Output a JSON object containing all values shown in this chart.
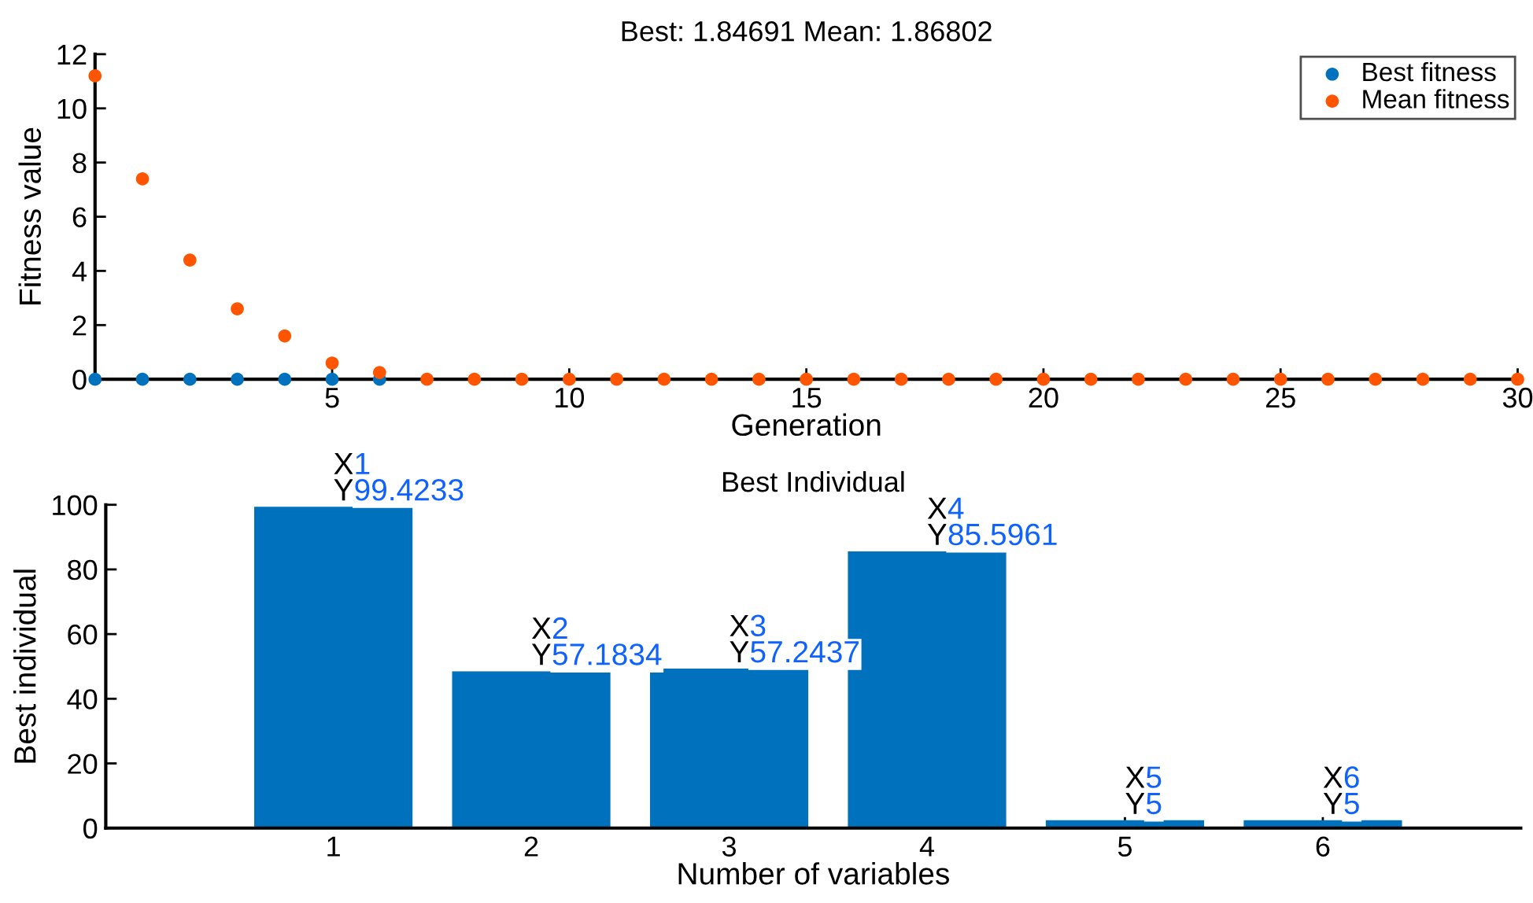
{
  "chart_data": [
    {
      "type": "scatter",
      "title": "Best: 1.84691 Mean: 1.86802",
      "xlabel": "Generation",
      "ylabel": "Fitness value",
      "x": [
        0,
        1,
        2,
        3,
        4,
        5,
        6,
        7,
        8,
        9,
        10,
        11,
        12,
        13,
        14,
        15,
        16,
        17,
        18,
        19,
        20,
        21,
        22,
        23,
        24,
        25,
        26,
        27,
        28,
        29,
        30
      ],
      "series": [
        {
          "name": "Best fitness",
          "color": "#0072bd",
          "values": [
            0,
            0,
            0,
            0,
            0,
            0,
            0,
            null,
            null,
            null,
            null,
            null,
            null,
            null,
            null,
            null,
            null,
            null,
            null,
            null,
            null,
            null,
            null,
            null,
            null,
            null,
            null,
            null,
            null,
            null,
            null
          ]
        },
        {
          "name": "Mean fitness",
          "color": "#ff5500",
          "values": [
            11.2,
            7.4,
            4.4,
            2.6,
            1.6,
            0.6,
            0.25,
            0,
            0,
            0,
            0,
            0,
            0,
            0,
            0,
            0,
            0,
            0,
            0,
            0,
            0,
            0,
            0,
            0,
            0,
            0,
            0,
            0,
            0,
            0,
            0
          ]
        }
      ],
      "xlim": [
        0,
        30
      ],
      "xticks": [
        5,
        10,
        15,
        20,
        25,
        30
      ],
      "ylim": [
        0,
        12
      ],
      "yticks": [
        0,
        2,
        4,
        6,
        8,
        10,
        12
      ],
      "marker": "circle",
      "legend": "top right",
      "grid": false
    },
    {
      "type": "bar",
      "title": "Best Individual",
      "xlabel": "Number of variables",
      "ylabel": "Best individual",
      "x": [
        1,
        2,
        3,
        4,
        5,
        6
      ],
      "values": [
        99.4,
        48.5,
        49.3,
        85.6,
        2.4,
        2.4
      ],
      "color": "#0072bd",
      "xlim": [
        -0.15,
        7
      ],
      "xticks": [
        1,
        2,
        3,
        4,
        5,
        6
      ],
      "ylim": [
        0,
        100
      ],
      "yticks": [
        0,
        20,
        40,
        60,
        80,
        100
      ],
      "grid": false,
      "annotations": [
        {
          "text": "X1\nY99.4233",
          "x": 1,
          "y": 99.4
        },
        {
          "text": "X2\nY57.1834",
          "x": 2,
          "y": 48.5
        },
        {
          "text": "X3\nY57.2437",
          "x": 3,
          "y": 49.3
        },
        {
          "text": "X4\nY85.5961",
          "x": 4,
          "y": 85.6
        },
        {
          "text": "X5\nY5",
          "x": 5,
          "y": 2.4
        },
        {
          "text": "X6\nY5",
          "x": 6,
          "y": 2.4
        }
      ]
    }
  ]
}
